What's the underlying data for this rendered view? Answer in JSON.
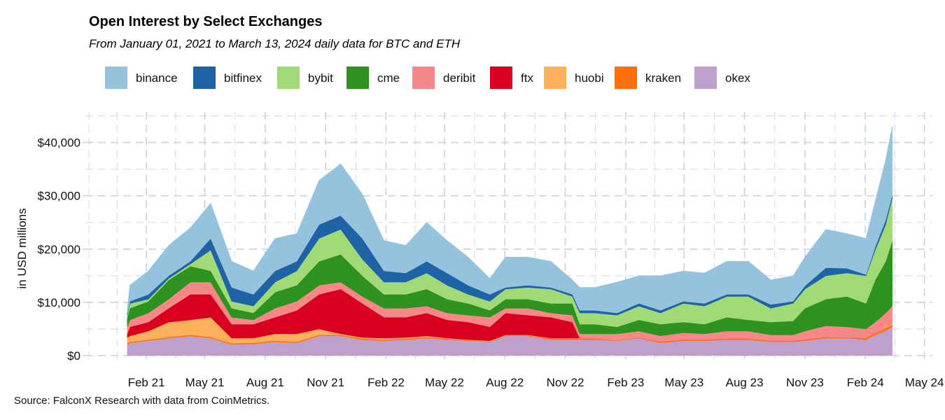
{
  "chart_data": {
    "type": "area",
    "stacked": true,
    "title": "Open Interest by Select Exchanges",
    "subtitle": "From January 01, 2021 to March 13, 2024 daily data for BTC and ETH",
    "xlabel": "",
    "ylabel": "in USD millions",
    "source": "Source: FalconX Research with data from CoinMetrics.",
    "ylim": [
      0,
      45000
    ],
    "yticks": [
      0,
      10000,
      20000,
      30000,
      40000
    ],
    "ytick_labels": [
      "$0",
      "$10,000",
      "$20,000",
      "$30,000",
      "$40,000"
    ],
    "xlim": [
      "2021-01-01",
      "2024-03-13"
    ],
    "xticks": [
      "2021-02-01",
      "2021-05-01",
      "2021-08-01",
      "2021-11-01",
      "2022-02-01",
      "2022-05-01",
      "2022-08-01",
      "2022-11-01",
      "2023-02-01",
      "2023-05-01",
      "2023-08-01",
      "2023-11-01",
      "2024-02-01",
      "2024-05-01"
    ],
    "xtick_labels": [
      "Feb 21",
      "May 21",
      "Aug 21",
      "Nov 21",
      "Feb 22",
      "May 22",
      "Aug 22",
      "Nov 22",
      "Feb 23",
      "May 23",
      "Aug 23",
      "Nov 23",
      "Feb 24",
      "May 24"
    ],
    "grid": true,
    "legend_position": "top",
    "x": [
      "2021-01-03",
      "2021-01-07",
      "2021-02-04",
      "2021-03-07",
      "2021-04-09",
      "2021-05-10",
      "2021-06-11",
      "2021-07-14",
      "2021-08-16",
      "2021-09-18",
      "2021-10-22",
      "2021-11-24",
      "2021-12-27",
      "2022-01-29",
      "2022-03-03",
      "2022-04-04",
      "2022-05-05",
      "2022-06-06",
      "2022-07-09",
      "2022-08-02",
      "2022-09-05",
      "2022-10-10",
      "2022-11-12",
      "2022-11-23",
      "2022-12-16",
      "2023-01-19",
      "2023-02-21",
      "2023-03-26",
      "2023-04-30",
      "2023-06-01",
      "2023-07-05",
      "2023-08-07",
      "2023-09-10",
      "2023-10-14",
      "2023-11-01",
      "2023-12-03",
      "2024-01-04",
      "2024-02-02",
      "2024-02-16",
      "2024-03-03",
      "2024-03-13"
    ],
    "series": [
      {
        "name": "okex",
        "color": "#bda0cb",
        "values": [
          2100,
          2400,
          2800,
          3300,
          3700,
          3300,
          2100,
          2200,
          2600,
          2400,
          3700,
          3700,
          3000,
          2800,
          3000,
          3300,
          3000,
          2800,
          2600,
          3700,
          3700,
          3000,
          3000,
          3000,
          3000,
          2800,
          3300,
          2400,
          2800,
          2800,
          3000,
          3000,
          2600,
          2600,
          2800,
          3300,
          3300,
          3000,
          3900,
          4700,
          5400
        ]
      },
      {
        "name": "kraken",
        "color": "#ff6f0f",
        "values": [
          200,
          200,
          200,
          200,
          200,
          200,
          200,
          200,
          200,
          200,
          200,
          200,
          200,
          200,
          200,
          200,
          200,
          100,
          100,
          100,
          100,
          200,
          200,
          200,
          200,
          100,
          100,
          200,
          200,
          200,
          200,
          200,
          200,
          200,
          200,
          200,
          100,
          300,
          300,
          500,
          400
        ]
      },
      {
        "name": "huobi",
        "color": "#fbb15c",
        "values": [
          1100,
          1100,
          1600,
          2800,
          2800,
          3700,
          1000,
          900,
          1300,
          1500,
          1100,
          200,
          200,
          300,
          200,
          200,
          100,
          100,
          100,
          100,
          100,
          100,
          100,
          100,
          100,
          100,
          0,
          0,
          0,
          0,
          100,
          100,
          0,
          0,
          0,
          0,
          0,
          0,
          100,
          200,
          200
        ]
      },
      {
        "name": "ftx",
        "color": "#d8001e",
        "values": [
          700,
          1700,
          1700,
          2600,
          4800,
          4300,
          2600,
          2600,
          3100,
          4400,
          6500,
          8400,
          6400,
          3900,
          3800,
          4300,
          3400,
          3300,
          2600,
          4100,
          3700,
          3900,
          3000,
          0,
          0,
          0,
          0,
          0,
          0,
          0,
          0,
          0,
          0,
          0,
          0,
          0,
          0,
          0,
          0,
          0,
          0
        ]
      },
      {
        "name": "deribit",
        "color": "#f7888a",
        "values": [
          1300,
          1300,
          1700,
          1700,
          2300,
          2300,
          1300,
          800,
          1700,
          1700,
          1700,
          1300,
          1300,
          1700,
          1700,
          1300,
          1300,
          1300,
          1800,
          900,
          1300,
          800,
          1300,
          800,
          800,
          1100,
          1200,
          1100,
          1300,
          1100,
          1300,
          1300,
          1100,
          1100,
          1600,
          2100,
          2000,
          1700,
          2000,
          2600,
          3300
        ]
      },
      {
        "name": "cme",
        "color": "#2e9221",
        "values": [
          1800,
          2200,
          2200,
          3600,
          3000,
          2100,
          1700,
          1300,
          3000,
          3000,
          4500,
          5200,
          3900,
          2600,
          2600,
          3200,
          2600,
          2200,
          1300,
          1700,
          1700,
          1800,
          2200,
          1800,
          1800,
          1300,
          2100,
          2200,
          2000,
          1800,
          2600,
          2100,
          2400,
          2600,
          4300,
          5000,
          5700,
          4800,
          7900,
          9700,
          12300
        ]
      },
      {
        "name": "bybit",
        "color": "#a2d977",
        "values": [
          400,
          900,
          400,
          300,
          400,
          3900,
          1300,
          1300,
          1900,
          2700,
          4300,
          4700,
          3100,
          2300,
          2300,
          3000,
          2600,
          1700,
          1700,
          1900,
          2200,
          2700,
          1300,
          2100,
          2100,
          2200,
          2600,
          2100,
          3500,
          3400,
          3900,
          4400,
          2600,
          3300,
          3600,
          4400,
          4400,
          5200,
          5600,
          6900,
          7900
        ]
      },
      {
        "name": "bitfinex",
        "color": "#1f63a7",
        "values": [
          300,
          400,
          900,
          500,
          500,
          2200,
          2600,
          2200,
          2100,
          1800,
          2600,
          2600,
          3900,
          2100,
          1700,
          2200,
          2300,
          1700,
          1300,
          300,
          400,
          300,
          400,
          500,
          500,
          400,
          500,
          500,
          400,
          500,
          400,
          400,
          700,
          400,
          600,
          1500,
          900,
          200,
          600,
          900,
          600
        ]
      },
      {
        "name": "binance",
        "color": "#95c2dc",
        "values": [
          1000,
          3000,
          4400,
          5700,
          6300,
          6600,
          4900,
          4400,
          6100,
          5200,
          8300,
          9700,
          8300,
          5700,
          5200,
          7300,
          6100,
          5300,
          3000,
          5700,
          5300,
          4900,
          2700,
          4300,
          4300,
          5800,
          5200,
          6500,
          5700,
          5700,
          6200,
          6200,
          4600,
          4800,
          5400,
          7200,
          6500,
          6800,
          8600,
          11300,
          12900
        ]
      }
    ],
    "legend_order": [
      "binance",
      "bitfinex",
      "bybit",
      "cme",
      "deribit",
      "ftx",
      "huobi",
      "kraken",
      "okex"
    ]
  }
}
